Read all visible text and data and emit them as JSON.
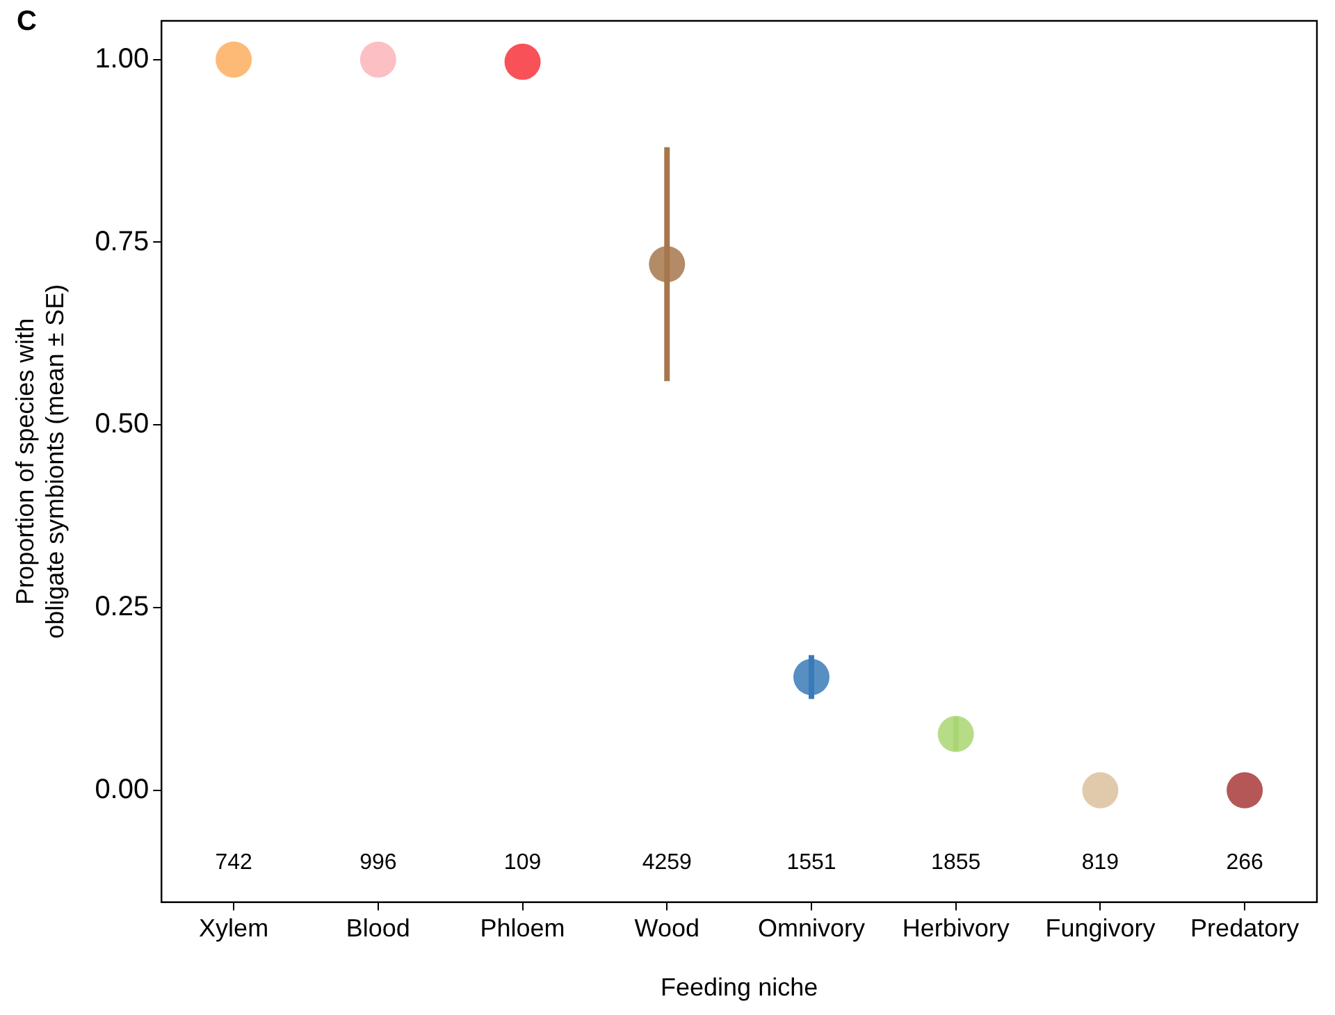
{
  "chart_data": {
    "type": "scatter",
    "xlabel": "Feeding niche",
    "ylabel": "Proportion of species with\nobligate symbionts (mean ± SE)",
    "categories": [
      "Xylem",
      "Blood",
      "Phloem",
      "Wood",
      "Omnivory",
      "Herbivory",
      "Fungivory",
      "Predatory"
    ],
    "values": [
      1.0,
      1.0,
      0.997,
      0.72,
      0.155,
      0.077,
      0.0,
      0.0
    ],
    "errors": [
      null,
      null,
      null,
      [
        0.56,
        0.88
      ],
      [
        0.125,
        0.185
      ],
      [
        0.054,
        0.1
      ],
      null,
      null
    ],
    "colors": [
      "#fcae5e",
      "#fbb5ba",
      "#f7333a",
      "#a6774c",
      "#3a7bb8",
      "#a9d673",
      "#dcc19c",
      "#a83a3a"
    ],
    "ylim": [
      -0.153,
      1.053
    ],
    "yticks": [
      {
        "value": 0,
        "label": "0.00"
      },
      {
        "value": 0.25,
        "label": "0.25"
      },
      {
        "value": 0.5,
        "label": "0.50"
      },
      {
        "value": 0.75,
        "label": "0.75"
      },
      {
        "value": 1,
        "label": "1.00"
      }
    ],
    "marker": "circle",
    "grid": false,
    "legend": false,
    "annotations": [
      "C",
      "742",
      "996",
      "109",
      "4259",
      "1551",
      "1855",
      "819",
      "266"
    ]
  }
}
